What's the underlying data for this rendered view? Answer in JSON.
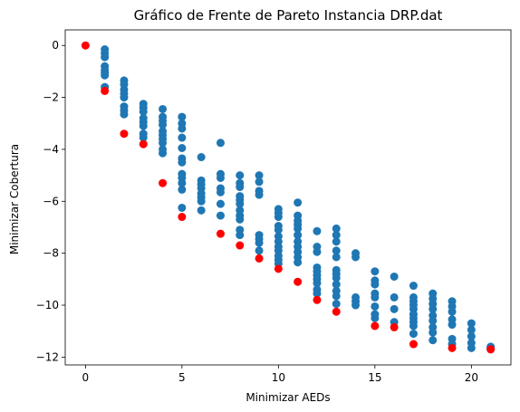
{
  "chart_data": {
    "type": "scatter",
    "title": "Gráfico de Frente de Pareto Instancia DRP.dat",
    "xlabel": "Minimizar AEDs",
    "ylabel": "Minimizar Cobertura",
    "xlim": [
      -1.05,
      22.05
    ],
    "ylim": [
      -12.3,
      0.6
    ],
    "xticks": [
      0,
      5,
      10,
      15,
      20
    ],
    "xtick_labels": [
      "0",
      "5",
      "10",
      "15",
      "20"
    ],
    "yticks": [
      0,
      -2,
      -4,
      -6,
      -8,
      -10,
      -12
    ],
    "ytick_labels": [
      "0",
      "−2",
      "−4",
      "−6",
      "−8",
      "−10",
      "−12"
    ],
    "grid": false,
    "series": [
      {
        "color": "#1f77b4",
        "points": [
          [
            1,
            -0.15
          ],
          [
            1,
            -0.3
          ],
          [
            1,
            -0.45
          ],
          [
            1,
            -0.8
          ],
          [
            1,
            -0.95
          ],
          [
            1,
            -1.05
          ],
          [
            1,
            -1.15
          ],
          [
            1,
            -1.6
          ],
          [
            2,
            -1.35
          ],
          [
            2,
            -1.5
          ],
          [
            2,
            -1.7
          ],
          [
            2,
            -1.85
          ],
          [
            2,
            -2.0
          ],
          [
            2,
            -2.35
          ],
          [
            2,
            -2.5
          ],
          [
            2,
            -2.65
          ],
          [
            3,
            -2.25
          ],
          [
            3,
            -2.4
          ],
          [
            3,
            -2.55
          ],
          [
            3,
            -2.8
          ],
          [
            3,
            -2.95
          ],
          [
            3,
            -3.1
          ],
          [
            3,
            -3.4
          ],
          [
            3,
            -3.55
          ],
          [
            4,
            -2.45
          ],
          [
            4,
            -2.75
          ],
          [
            4,
            -2.9
          ],
          [
            4,
            -3.05
          ],
          [
            4,
            -3.3
          ],
          [
            4,
            -3.45
          ],
          [
            4,
            -3.6
          ],
          [
            4,
            -3.75
          ],
          [
            4,
            -4.0
          ],
          [
            4,
            -4.15
          ],
          [
            5,
            -2.75
          ],
          [
            5,
            -3.0
          ],
          [
            5,
            -3.2
          ],
          [
            5,
            -3.55
          ],
          [
            5,
            -3.95
          ],
          [
            5,
            -4.35
          ],
          [
            5,
            -4.5
          ],
          [
            5,
            -4.95
          ],
          [
            5,
            -5.1
          ],
          [
            5,
            -5.3
          ],
          [
            5,
            -5.55
          ],
          [
            5,
            -6.25
          ],
          [
            6,
            -4.3
          ],
          [
            6,
            -5.2
          ],
          [
            6,
            -5.35
          ],
          [
            6,
            -5.5
          ],
          [
            6,
            -5.7
          ],
          [
            6,
            -5.85
          ],
          [
            6,
            -6.0
          ],
          [
            6,
            -6.35
          ],
          [
            7,
            -3.75
          ],
          [
            7,
            -4.95
          ],
          [
            7,
            -5.1
          ],
          [
            7,
            -5.5
          ],
          [
            7,
            -5.65
          ],
          [
            7,
            -6.1
          ],
          [
            7,
            -6.55
          ],
          [
            8,
            -5.0
          ],
          [
            8,
            -5.3
          ],
          [
            8,
            -5.45
          ],
          [
            8,
            -5.8
          ],
          [
            8,
            -5.95
          ],
          [
            8,
            -6.1
          ],
          [
            8,
            -6.35
          ],
          [
            8,
            -6.55
          ],
          [
            8,
            -6.7
          ],
          [
            8,
            -7.1
          ],
          [
            8,
            -7.3
          ],
          [
            9,
            -5.0
          ],
          [
            9,
            -5.25
          ],
          [
            9,
            -5.6
          ],
          [
            9,
            -5.75
          ],
          [
            9,
            -7.3
          ],
          [
            9,
            -7.45
          ],
          [
            9,
            -7.6
          ],
          [
            9,
            -7.9
          ],
          [
            10,
            -6.3
          ],
          [
            10,
            -6.45
          ],
          [
            10,
            -6.6
          ],
          [
            10,
            -6.95
          ],
          [
            10,
            -7.1
          ],
          [
            10,
            -7.35
          ],
          [
            10,
            -7.55
          ],
          [
            10,
            -7.75
          ],
          [
            10,
            -7.9
          ],
          [
            10,
            -8.1
          ],
          [
            10,
            -8.25
          ],
          [
            10,
            -8.4
          ],
          [
            11,
            -6.05
          ],
          [
            11,
            -6.55
          ],
          [
            11,
            -6.75
          ],
          [
            11,
            -6.9
          ],
          [
            11,
            -7.05
          ],
          [
            11,
            -7.3
          ],
          [
            11,
            -7.55
          ],
          [
            11,
            -7.75
          ],
          [
            11,
            -7.95
          ],
          [
            11,
            -8.15
          ],
          [
            11,
            -8.35
          ],
          [
            12,
            -7.15
          ],
          [
            12,
            -7.75
          ],
          [
            12,
            -7.95
          ],
          [
            12,
            -8.55
          ],
          [
            12,
            -8.7
          ],
          [
            12,
            -8.85
          ],
          [
            12,
            -9.0
          ],
          [
            12,
            -9.15
          ],
          [
            12,
            -9.4
          ],
          [
            12,
            -9.55
          ],
          [
            13,
            -7.05
          ],
          [
            13,
            -7.3
          ],
          [
            13,
            -7.55
          ],
          [
            13,
            -7.9
          ],
          [
            13,
            -8.15
          ],
          [
            13,
            -8.65
          ],
          [
            13,
            -8.8
          ],
          [
            13,
            -8.95
          ],
          [
            13,
            -9.2
          ],
          [
            13,
            -9.45
          ],
          [
            13,
            -9.65
          ],
          [
            13,
            -9.95
          ],
          [
            14,
            -8.0
          ],
          [
            14,
            -8.15
          ],
          [
            14,
            -9.7
          ],
          [
            14,
            -9.85
          ],
          [
            14,
            -10.0
          ],
          [
            15,
            -8.7
          ],
          [
            15,
            -9.05
          ],
          [
            15,
            -9.2
          ],
          [
            15,
            -9.55
          ],
          [
            15,
            -9.7
          ],
          [
            15,
            -10.05
          ],
          [
            15,
            -10.35
          ],
          [
            15,
            -10.5
          ],
          [
            16,
            -8.9
          ],
          [
            16,
            -9.7
          ],
          [
            16,
            -10.15
          ],
          [
            16,
            -10.65
          ],
          [
            17,
            -9.25
          ],
          [
            17,
            -9.7
          ],
          [
            17,
            -9.85
          ],
          [
            17,
            -10.0
          ],
          [
            17,
            -10.15
          ],
          [
            17,
            -10.35
          ],
          [
            17,
            -10.5
          ],
          [
            17,
            -10.65
          ],
          [
            17,
            -10.8
          ],
          [
            17,
            -11.1
          ],
          [
            18,
            -9.55
          ],
          [
            18,
            -9.75
          ],
          [
            18,
            -9.95
          ],
          [
            18,
            -10.15
          ],
          [
            18,
            -10.4
          ],
          [
            18,
            -10.6
          ],
          [
            18,
            -10.85
          ],
          [
            18,
            -11.05
          ],
          [
            18,
            -11.35
          ],
          [
            19,
            -9.85
          ],
          [
            19,
            -10.05
          ],
          [
            19,
            -10.25
          ],
          [
            19,
            -10.55
          ],
          [
            19,
            -10.75
          ],
          [
            19,
            -11.3
          ],
          [
            19,
            -11.5
          ],
          [
            20,
            -10.7
          ],
          [
            20,
            -10.95
          ],
          [
            20,
            -11.2
          ],
          [
            20,
            -11.45
          ],
          [
            20,
            -11.65
          ],
          [
            21,
            -11.6
          ],
          [
            21,
            -11.65
          ],
          [
            21,
            -11.7
          ]
        ]
      },
      {
        "color": "#ff0000",
        "points": [
          [
            0,
            0
          ],
          [
            1,
            -1.75
          ],
          [
            2,
            -3.4
          ],
          [
            3,
            -3.8
          ],
          [
            4,
            -5.3
          ],
          [
            5,
            -6.6
          ],
          [
            7,
            -7.25
          ],
          [
            8,
            -7.7
          ],
          [
            9,
            -8.2
          ],
          [
            10,
            -8.6
          ],
          [
            11,
            -9.1
          ],
          [
            12,
            -9.8
          ],
          [
            13,
            -10.25
          ],
          [
            15,
            -10.8
          ],
          [
            16,
            -10.85
          ],
          [
            17,
            -11.5
          ],
          [
            19,
            -11.65
          ],
          [
            21,
            -11.7
          ]
        ]
      }
    ]
  }
}
